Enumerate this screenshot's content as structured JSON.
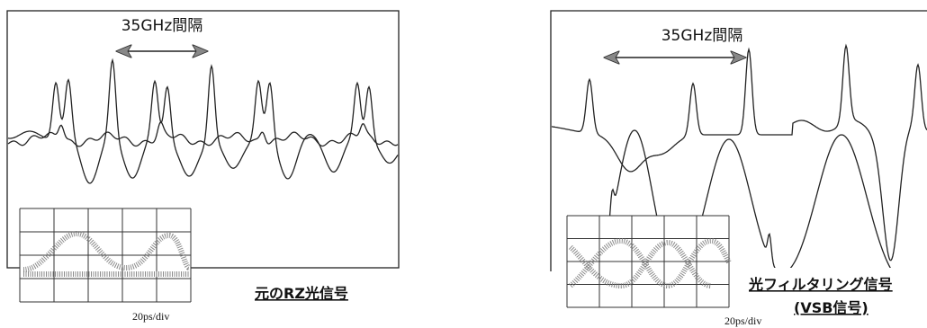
{
  "left": {
    "spacing_label": "35GHz間隔",
    "caption": "元のRZ光信号",
    "scale": "20ps/div"
  },
  "right": {
    "spacing_label": "35GHz間隔",
    "caption": "光フィルタリング信号",
    "caption_sub": "(VSB信号)",
    "scale": "20ps/div"
  }
}
